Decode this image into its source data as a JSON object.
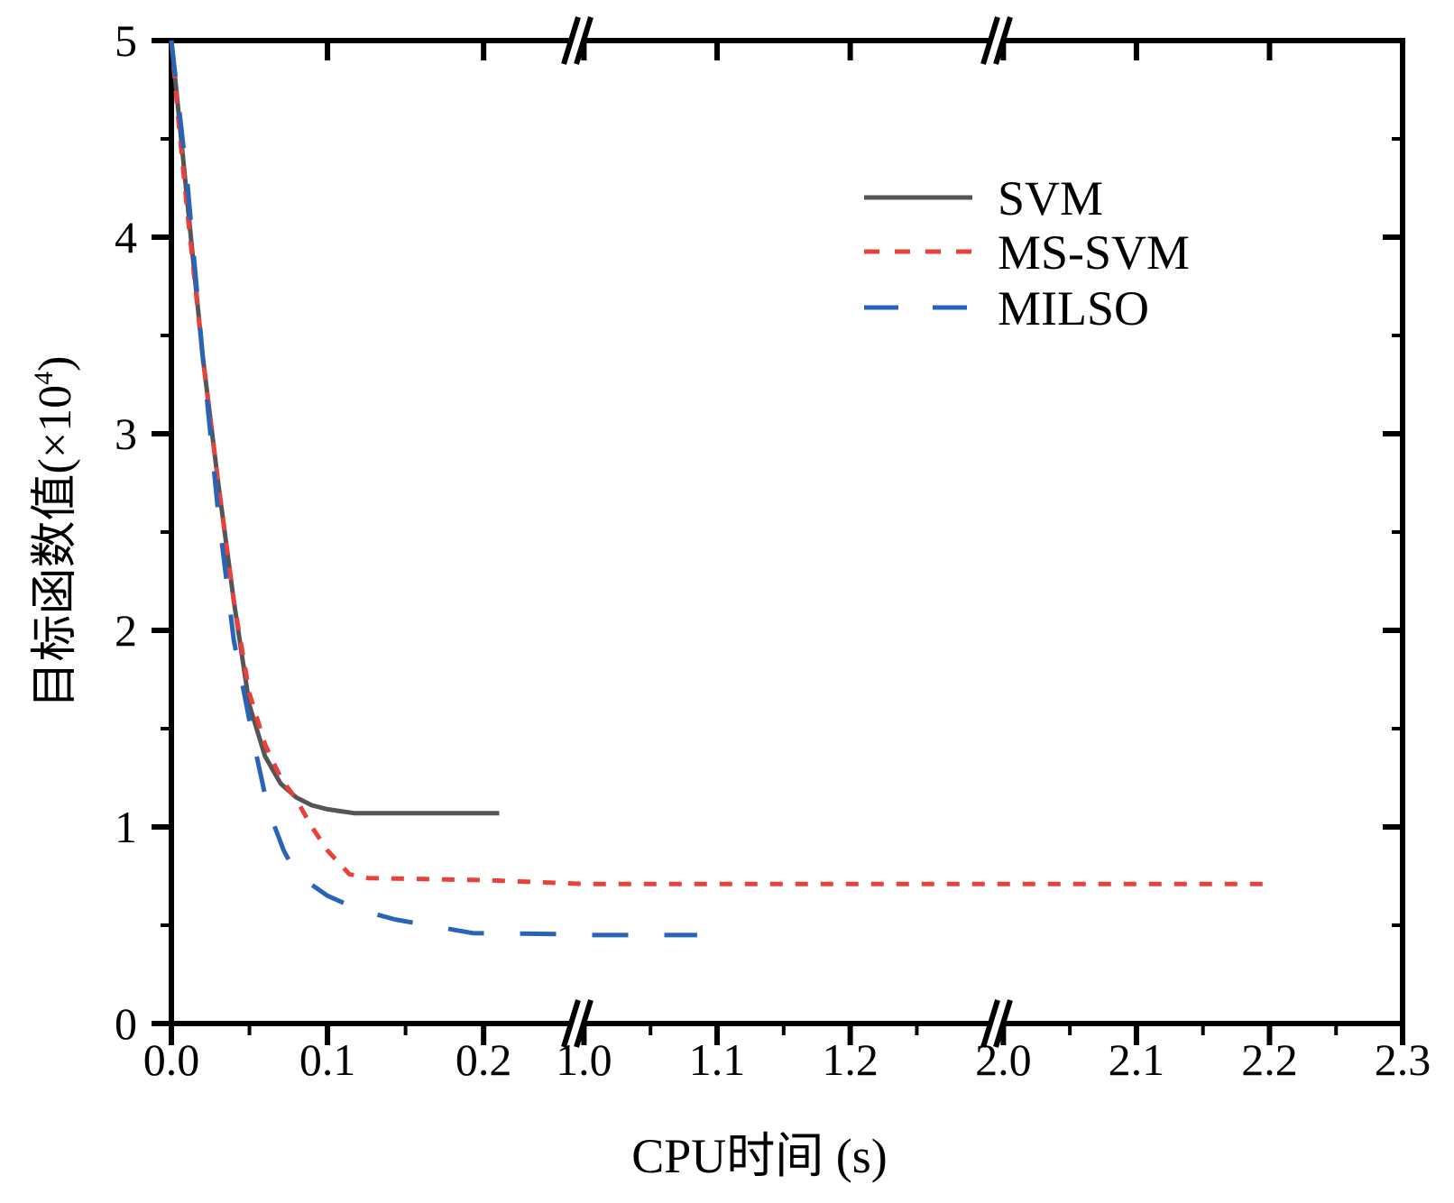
{
  "chart_data": {
    "type": "line",
    "title": "",
    "xlabel": "CPU时间 (s)",
    "ylabel": "目标函数值(×10⁴)",
    "ylabel_parts": {
      "main": "目标函数值(×10",
      "sup": "4",
      "close": ")"
    },
    "ylim": [
      0,
      5
    ],
    "x_segments": [
      {
        "domain": [
          0,
          0.26
        ],
        "ticks": [
          "0.0",
          "0.1",
          "0.2"
        ],
        "tick_values": [
          0,
          0.1,
          0.2
        ],
        "minor": [
          0.05,
          0.15
        ]
      },
      {
        "domain": [
          0.995,
          1.31
        ],
        "ticks": [
          "1.0",
          "1.1",
          "1.2"
        ],
        "tick_values": [
          1.0,
          1.1,
          1.2
        ],
        "minor": [
          1.05,
          1.15,
          1.25
        ]
      },
      {
        "domain": [
          1.995,
          2.3
        ],
        "ticks": [
          "2.0",
          "2.1",
          "2.2",
          "2.3"
        ],
        "tick_values": [
          2.0,
          2.1,
          2.2,
          2.3
        ],
        "minor": [
          2.05,
          2.15,
          2.25
        ]
      }
    ],
    "yticks": [
      "0",
      "1",
      "2",
      "3",
      "4",
      "5"
    ],
    "ytick_values": [
      0,
      1,
      2,
      3,
      4,
      5
    ],
    "grid": false,
    "legend_position": "top-right",
    "series": [
      {
        "name": "SVM",
        "color": "#555555",
        "dash": "solid",
        "x": [
          0,
          0.005,
          0.01,
          0.02,
          0.03,
          0.04,
          0.05,
          0.06,
          0.07,
          0.08,
          0.09,
          0.1,
          0.117,
          0.21
        ],
        "y": [
          5,
          4.6,
          4.2,
          3.4,
          2.75,
          2.15,
          1.62,
          1.36,
          1.22,
          1.15,
          1.11,
          1.09,
          1.07,
          1.07
        ]
      },
      {
        "name": "MS-SVM",
        "color": "#e8413c",
        "dash": "short-dash",
        "x": [
          0,
          0.005,
          0.01,
          0.02,
          0.03,
          0.04,
          0.05,
          0.06,
          0.07,
          0.08,
          0.09,
          0.1,
          0.114,
          0.126,
          0.2,
          1.0,
          2.2
        ],
        "y": [
          5,
          4.55,
          4.15,
          3.4,
          2.75,
          2.15,
          1.68,
          1.42,
          1.25,
          1.14,
          1.0,
          0.88,
          0.76,
          0.74,
          0.73,
          0.71,
          0.71
        ]
      },
      {
        "name": "MILSO",
        "color": "#2a64b8",
        "dash": "long-dash",
        "x": [
          0,
          0.01,
          0.02,
          0.03,
          0.04,
          0.053,
          0.062,
          0.072,
          0.08,
          0.1,
          0.12,
          0.143,
          0.193,
          0.25,
          1.0,
          1.085
        ],
        "y": [
          5,
          4.3,
          3.4,
          2.6,
          1.95,
          1.42,
          1.09,
          0.88,
          0.76,
          0.65,
          0.58,
          0.53,
          0.46,
          0.455,
          0.45,
          0.45
        ]
      }
    ]
  }
}
